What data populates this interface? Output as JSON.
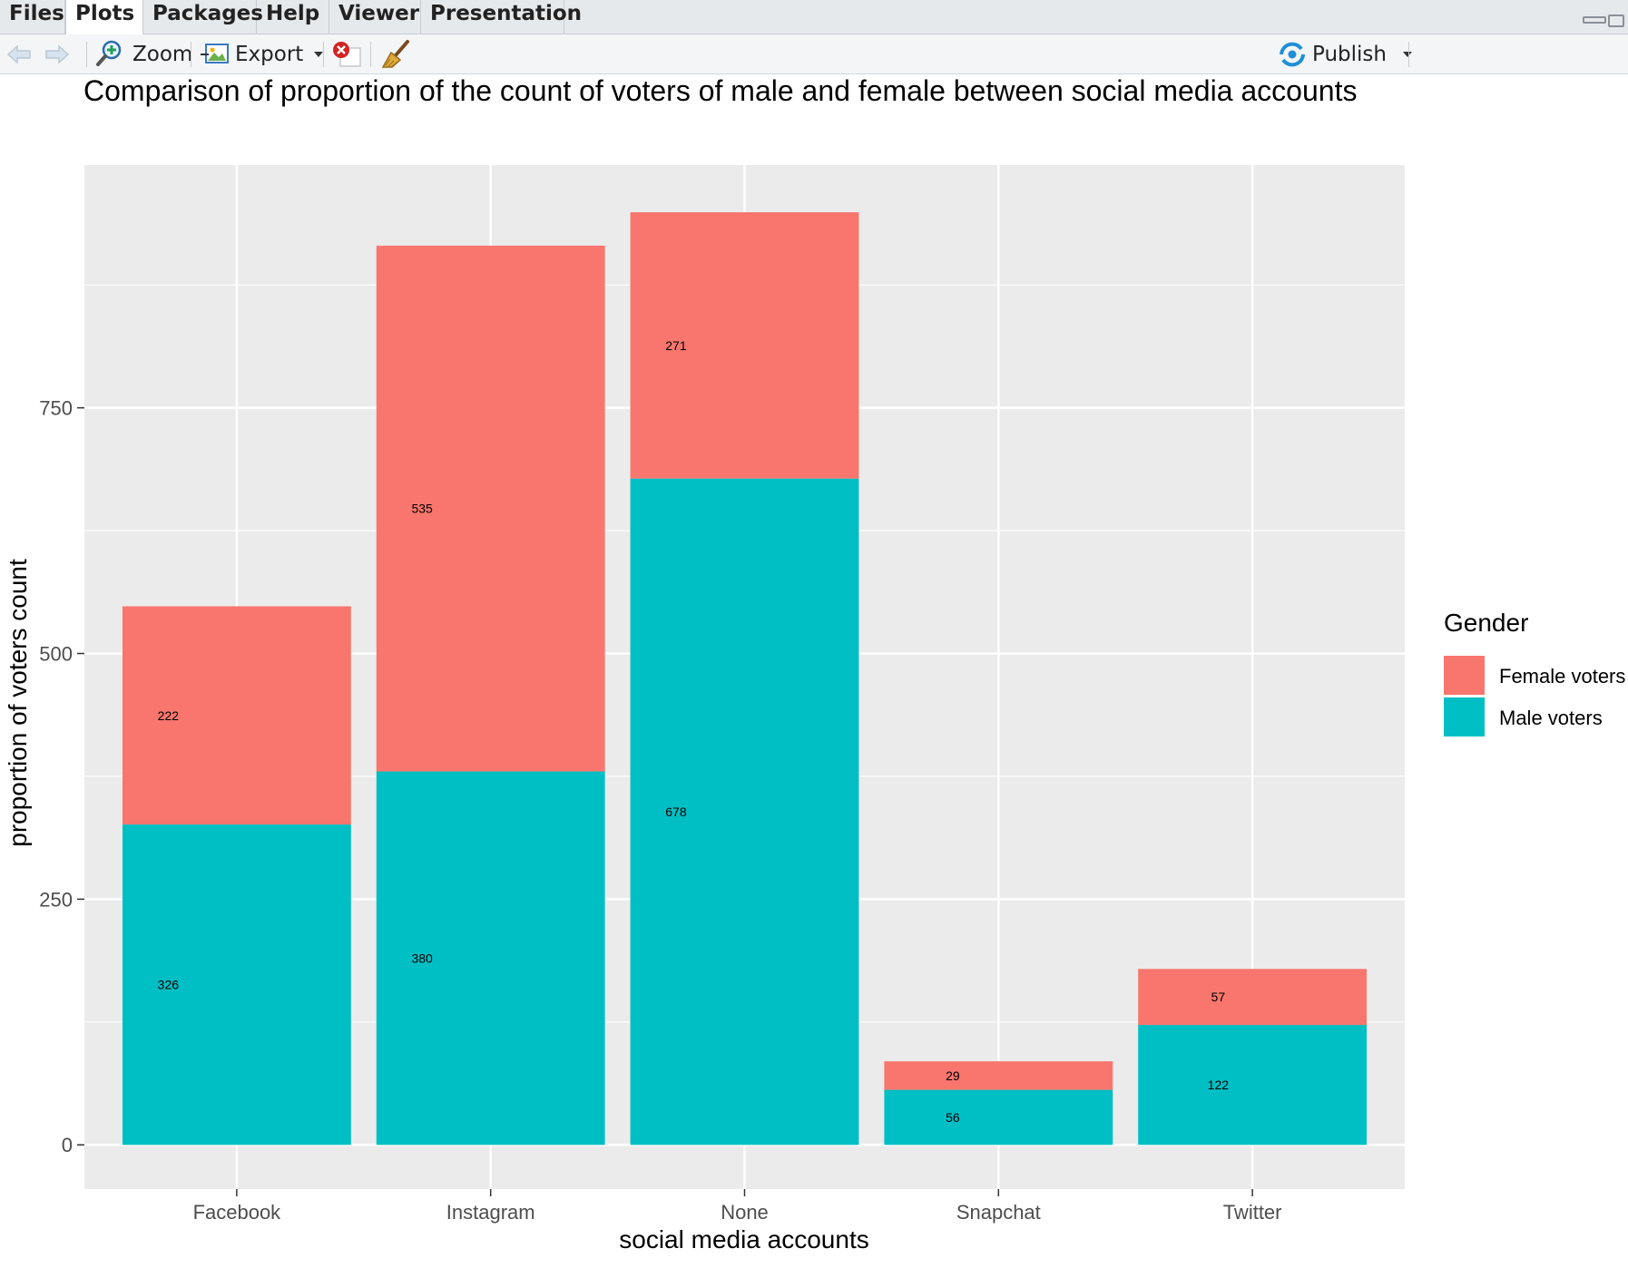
{
  "tabs": [
    {
      "label": "Files",
      "active": false
    },
    {
      "label": "Plots",
      "active": true
    },
    {
      "label": "Packages",
      "active": false
    },
    {
      "label": "Help",
      "active": false
    },
    {
      "label": "Viewer",
      "active": false
    },
    {
      "label": "Presentation",
      "active": false
    }
  ],
  "toolbar": {
    "back_icon": "arrow-left-icon",
    "forward_icon": "arrow-right-icon",
    "zoom_label": "Zoom",
    "export_label": "Export",
    "remove_icon": "remove-plot-icon",
    "clear_icon": "broom-icon",
    "publish_label": "Publish"
  },
  "colors": {
    "female": "#F8766D",
    "male": "#00BFC4",
    "panel_bg": "#EBEBEB",
    "grid": "#FFFFFF"
  },
  "chart_data": {
    "type": "bar",
    "stacked": true,
    "title": "Comparison of proportion of the count of voters of male and female between social media accounts",
    "xlabel": "social media accounts",
    "ylabel": "proportion of voters count",
    "categories": [
      "Facebook",
      "Instagram",
      "None",
      "Snapchat",
      "Twitter"
    ],
    "series": [
      {
        "name": "Male voters",
        "values": [
          326,
          380,
          678,
          56,
          122
        ]
      },
      {
        "name": "Female voters",
        "values": [
          222,
          535,
          271,
          29,
          57
        ]
      }
    ],
    "yticks": [
      0,
      250,
      500,
      750
    ],
    "ylim": [
      -45,
      997
    ],
    "grid": true,
    "legend": {
      "title": "Gender",
      "position": "right",
      "entries": [
        "Female voters",
        "Male voters"
      ]
    }
  }
}
